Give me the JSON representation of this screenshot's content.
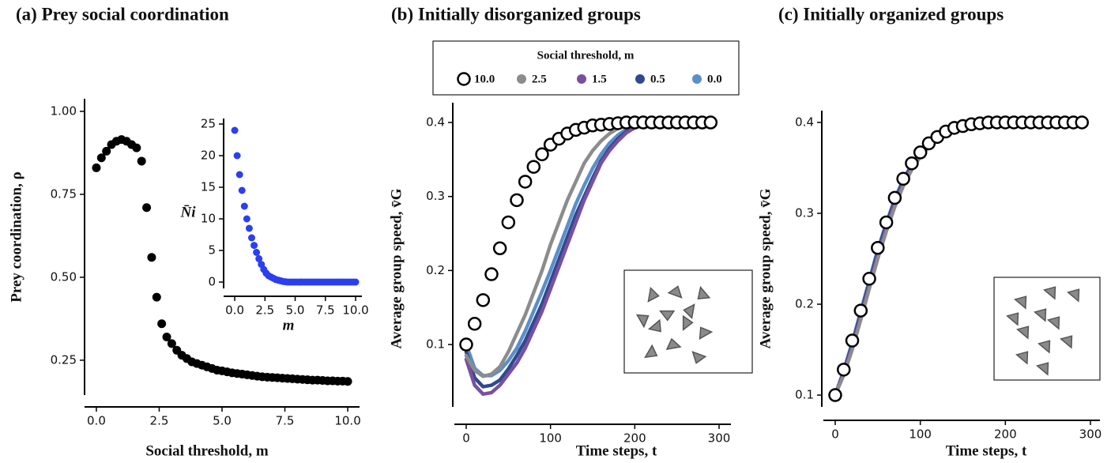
{
  "chart_data": [
    {
      "type": "scatter",
      "title": "(a) Prey social coordination",
      "xlabel": "Social threshold, m",
      "ylabel": "Prey coordination, ρ",
      "x": [
        0,
        0.2,
        0.4,
        0.6,
        0.8,
        1,
        1.2,
        1.4,
        1.6,
        1.8,
        2,
        2.2,
        2.4,
        2.6,
        2.8,
        3,
        3.2,
        3.4,
        3.6,
        3.8,
        4,
        4.2,
        4.4,
        4.6,
        4.8,
        5,
        5.2,
        5.4,
        5.6,
        5.8,
        6,
        6.2,
        6.4,
        6.6,
        6.8,
        7,
        7.2,
        7.4,
        7.6,
        7.8,
        8,
        8.2,
        8.4,
        8.6,
        8.8,
        9,
        9.2,
        9.4,
        9.6,
        9.8,
        10
      ],
      "series": [
        {
          "color": "#000000",
          "marker": "dot",
          "values": [
            0.83,
            0.86,
            0.88,
            0.9,
            0.91,
            0.915,
            0.91,
            0.9,
            0.89,
            0.85,
            0.71,
            0.56,
            0.44,
            0.36,
            0.32,
            0.3,
            0.28,
            0.265,
            0.255,
            0.245,
            0.24,
            0.235,
            0.23,
            0.225,
            0.22,
            0.218,
            0.215,
            0.212,
            0.21,
            0.208,
            0.206,
            0.204,
            0.202,
            0.2,
            0.199,
            0.198,
            0.197,
            0.196,
            0.195,
            0.194,
            0.193,
            0.192,
            0.191,
            0.19,
            0.19,
            0.189,
            0.188,
            0.188,
            0.187,
            0.187,
            0.186
          ]
        }
      ],
      "xlim": [
        -0.47,
        10.47
      ],
      "ylim": [
        0.145,
        1.038
      ],
      "xticks": [
        {
          "value": 0,
          "label": "0.0"
        },
        {
          "value": 2.5,
          "label": "2.5"
        },
        {
          "value": 5,
          "label": "5.0"
        },
        {
          "value": 7.5,
          "label": "7.5"
        },
        {
          "value": 10,
          "label": "10.0"
        }
      ],
      "yticks": [
        {
          "value": 0.25,
          "label": "0.25"
        },
        {
          "value": 0.5,
          "label": "0.50"
        },
        {
          "value": 0.75,
          "label": "0.75"
        },
        {
          "value": 1,
          "label": "1.00"
        }
      ]
    },
    {
      "type": "scatter",
      "xlabel": "m",
      "ylabel": "N̄i",
      "x": [
        0,
        0.2,
        0.4,
        0.6,
        0.8,
        1,
        1.2,
        1.4,
        1.6,
        1.8,
        2,
        2.2,
        2.4,
        2.6,
        2.8,
        3,
        3.2,
        3.4,
        3.6,
        3.8,
        4,
        4.2,
        4.4,
        4.6,
        4.8,
        5,
        5.2,
        5.4,
        5.6,
        5.8,
        6,
        6.2,
        6.4,
        6.6,
        6.8,
        7,
        7.2,
        7.4,
        7.6,
        7.8,
        8,
        8.2,
        8.4,
        8.6,
        8.8,
        9,
        9.2,
        9.4,
        9.6,
        9.8,
        10
      ],
      "series": [
        {
          "color": "#2b3ff0",
          "marker": "dot",
          "values": [
            24,
            20,
            17,
            14.5,
            12,
            10,
            8.5,
            7,
            5.8,
            4.7,
            3.7,
            2.8,
            2,
            1.4,
            1,
            0.8,
            0.6,
            0.4,
            0.3,
            0.2,
            0.1,
            0.05,
            0,
            0,
            0,
            0,
            0,
            0,
            0,
            0,
            0,
            0,
            0,
            0,
            0,
            0,
            0,
            0,
            0,
            0,
            0,
            0,
            0,
            0,
            0,
            0,
            0,
            0,
            0,
            0,
            0
          ]
        }
      ],
      "xlim": [
        -0.92,
        10.52
      ],
      "ylim": [
        -1,
        25.875
      ],
      "xticks": [
        {
          "value": 0,
          "label": "0.0"
        },
        {
          "value": 2.5,
          "label": "2.5"
        },
        {
          "value": 5,
          "label": "5.0"
        },
        {
          "value": 7.5,
          "label": "7.5"
        },
        {
          "value": 10,
          "label": "10.0"
        }
      ],
      "yticks": [
        0,
        5,
        10,
        15,
        20,
        25
      ]
    },
    {
      "type": "line",
      "title": "(b) Initially disorganized groups",
      "xlabel": "Time steps, t",
      "ylabel": "Average group speed, v̄G",
      "legend": "top",
      "legend_title": "Social threshold, m",
      "x": [
        0,
        10,
        20,
        30,
        40,
        50,
        60,
        70,
        80,
        90,
        100,
        110,
        120,
        130,
        140,
        150,
        160,
        170,
        180,
        190,
        200,
        210,
        220,
        230,
        240,
        250,
        260,
        270,
        280,
        290
      ],
      "series": [
        {
          "name": "10.0",
          "color": "#000000",
          "marker": "open-circle",
          "values": [
            0.1,
            0.128,
            0.16,
            0.195,
            0.23,
            0.265,
            0.295,
            0.32,
            0.34,
            0.357,
            0.37,
            0.378,
            0.385,
            0.39,
            0.393,
            0.396,
            0.397,
            0.398,
            0.399,
            0.4,
            0.4,
            0.4,
            0.4,
            0.4,
            0.4,
            0.4,
            0.4,
            0.4,
            0.4,
            0.4
          ]
        },
        {
          "name": "2.5",
          "color": "#8c8c8c",
          "marker": "dots",
          "values": [
            0.085,
            0.065,
            0.057,
            0.06,
            0.07,
            0.09,
            0.115,
            0.14,
            0.17,
            0.2,
            0.235,
            0.265,
            0.295,
            0.32,
            0.345,
            0.362,
            0.375,
            0.385,
            0.392,
            0.396,
            0.398,
            0.399,
            0.4,
            0.4,
            0.4,
            0.4,
            0.4,
            0.4,
            0.4,
            0.4
          ]
        },
        {
          "name": "1.5",
          "color": "#7b4fa0",
          "marker": "dots",
          "values": [
            0.08,
            0.045,
            0.033,
            0.035,
            0.045,
            0.06,
            0.075,
            0.095,
            0.12,
            0.145,
            0.175,
            0.205,
            0.235,
            0.265,
            0.295,
            0.32,
            0.345,
            0.362,
            0.375,
            0.386,
            0.393,
            0.397,
            0.399,
            0.4,
            0.4,
            0.4,
            0.4,
            0.4,
            0.4,
            0.4
          ]
        },
        {
          "name": "0.5",
          "color": "#2e4a8f",
          "marker": "dots",
          "values": [
            0.09,
            0.055,
            0.043,
            0.045,
            0.052,
            0.067,
            0.085,
            0.105,
            0.13,
            0.155,
            0.185,
            0.215,
            0.245,
            0.275,
            0.3,
            0.325,
            0.348,
            0.365,
            0.378,
            0.388,
            0.394,
            0.398,
            0.4,
            0.4,
            0.4,
            0.4,
            0.4,
            0.4,
            0.4,
            0.4
          ]
        },
        {
          "name": "0.0",
          "color": "#5b8fc9",
          "marker": "dots",
          "values": [
            0.1,
            0.068,
            0.058,
            0.058,
            0.065,
            0.078,
            0.095,
            0.118,
            0.145,
            0.172,
            0.2,
            0.23,
            0.26,
            0.29,
            0.315,
            0.338,
            0.357,
            0.372,
            0.383,
            0.391,
            0.396,
            0.398,
            0.4,
            0.4,
            0.4,
            0.4,
            0.4,
            0.4,
            0.4,
            0.4
          ]
        }
      ],
      "xlim": [
        -14.06,
        314.06
      ],
      "ylim": [
        0.0157,
        0.4267
      ],
      "xticks": [
        0,
        100,
        200,
        300
      ],
      "yticks": [
        0.1,
        0.2,
        0.3,
        0.4
      ]
    },
    {
      "type": "line",
      "title": "(c) Initially organized groups",
      "xlabel": "Time steps, t",
      "ylabel": "Average group speed, v̄G",
      "x": [
        0,
        10,
        20,
        30,
        40,
        50,
        60,
        70,
        80,
        90,
        100,
        110,
        120,
        130,
        140,
        150,
        160,
        170,
        180,
        190,
        200,
        210,
        220,
        230,
        240,
        250,
        260,
        270,
        280,
        290
      ],
      "series": [
        {
          "color": "#000000",
          "marker": "open-circle",
          "values": [
            0.1,
            0.128,
            0.16,
            0.193,
            0.228,
            0.262,
            0.29,
            0.317,
            0.338,
            0.355,
            0.367,
            0.377,
            0.384,
            0.39,
            0.394,
            0.396,
            0.398,
            0.399,
            0.4,
            0.4,
            0.4,
            0.4,
            0.4,
            0.4,
            0.4,
            0.4,
            0.4,
            0.4,
            0.4,
            0.4
          ]
        },
        {
          "color": "#8c8c8c",
          "marker": "dots",
          "values": [
            0.1,
            0.122,
            0.15,
            0.183,
            0.217,
            0.25,
            0.28,
            0.307,
            0.33,
            0.348,
            0.362,
            0.373,
            0.381,
            0.387,
            0.392,
            0.395,
            0.397,
            0.398,
            0.399,
            0.4,
            0.4,
            0.4,
            0.4,
            0.4,
            0.4,
            0.4,
            0.4,
            0.4,
            0.4,
            0.4
          ]
        },
        {
          "color": "#7b4fa0",
          "marker": "dots",
          "values": [
            0.1,
            0.124,
            0.153,
            0.186,
            0.22,
            0.254,
            0.284,
            0.311,
            0.333,
            0.351,
            0.364,
            0.375,
            0.383,
            0.389,
            0.393,
            0.396,
            0.398,
            0.399,
            0.4,
            0.4,
            0.4,
            0.4,
            0.4,
            0.4,
            0.4,
            0.4,
            0.4,
            0.4,
            0.4,
            0.4
          ]
        },
        {
          "color": "#2e4a8f",
          "marker": "dots",
          "values": [
            0.1,
            0.126,
            0.156,
            0.19,
            0.224,
            0.258,
            0.288,
            0.314,
            0.336,
            0.353,
            0.366,
            0.376,
            0.384,
            0.39,
            0.394,
            0.396,
            0.398,
            0.399,
            0.4,
            0.4,
            0.4,
            0.4,
            0.4,
            0.4,
            0.4,
            0.4,
            0.4,
            0.4,
            0.4,
            0.4
          ]
        },
        {
          "color": "#5b8fc9",
          "marker": "dots",
          "values": [
            0.1,
            0.127,
            0.158,
            0.192,
            0.226,
            0.26,
            0.289,
            0.316,
            0.337,
            0.354,
            0.367,
            0.377,
            0.384,
            0.39,
            0.394,
            0.397,
            0.398,
            0.399,
            0.4,
            0.4,
            0.4,
            0.4,
            0.4,
            0.4,
            0.4,
            0.4,
            0.4,
            0.4,
            0.4,
            0.4
          ]
        }
      ],
      "xlim": [
        -13.93,
        311.15
      ],
      "ylim": [
        0.087,
        0.413
      ],
      "xticks": [
        0,
        100,
        200,
        300
      ],
      "yticks": [
        0.1,
        0.2,
        0.3,
        0.4
      ]
    }
  ]
}
